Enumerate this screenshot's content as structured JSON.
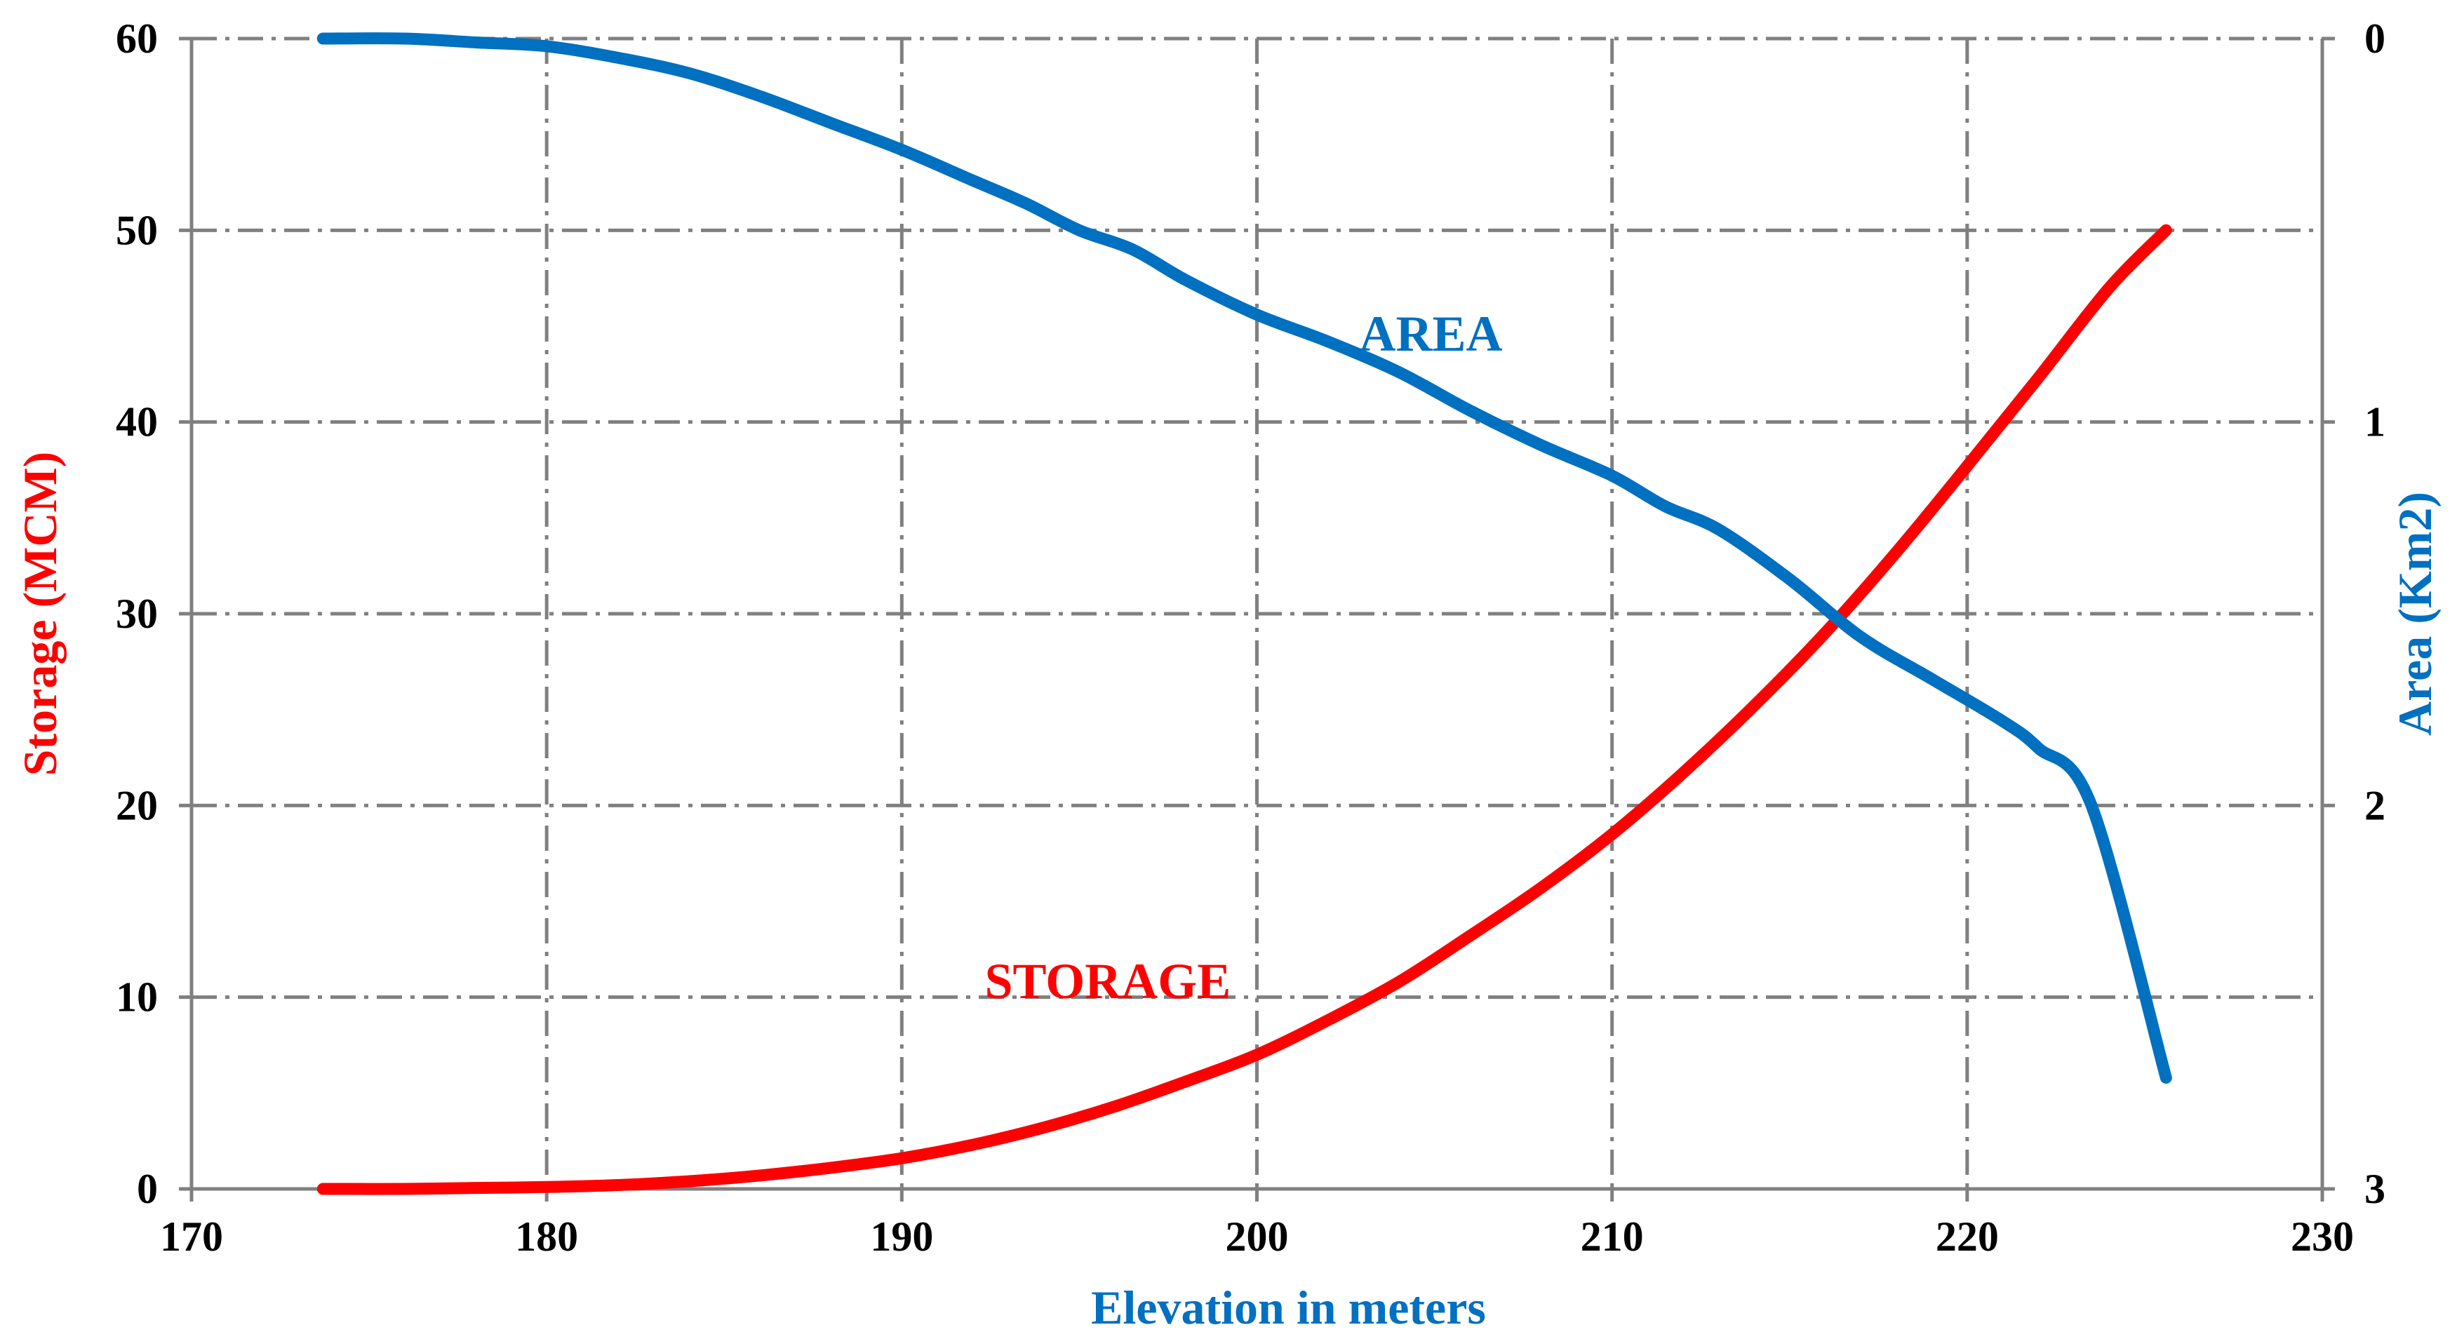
{
  "chart_data": {
    "type": "line",
    "xlabel": "Elevation in meters",
    "ylabel_left": "Storage (MCM)",
    "ylabel_right": "Area (Km2)",
    "xlim": [
      170,
      230
    ],
    "ylim_left": [
      0,
      60
    ],
    "ylim_right": [
      0,
      3
    ],
    "right_axis_inverted": true,
    "grid": true,
    "x_ticks": [
      170,
      180,
      190,
      200,
      210,
      220,
      230
    ],
    "y_left_ticks": [
      0,
      10,
      20,
      30,
      40,
      50,
      60
    ],
    "y_right_ticks": [
      0,
      1,
      2,
      3
    ],
    "colors": {
      "storage": "#ff0000",
      "area": "#0070c0",
      "grid": "#808080",
      "axis": "#808080"
    },
    "series": [
      {
        "name": "STORAGE",
        "axis": "left",
        "x": [
          173.7,
          176,
          178,
          180,
          182,
          184,
          186,
          188,
          190,
          192,
          194,
          196,
          198,
          200,
          202,
          204,
          206,
          208,
          210,
          212,
          214,
          216,
          218,
          220,
          222,
          224,
          225.6
        ],
        "values": [
          0,
          0,
          0.05,
          0.1,
          0.2,
          0.4,
          0.7,
          1.1,
          1.6,
          2.3,
          3.2,
          4.3,
          5.6,
          7.0,
          8.8,
          10.8,
          13.2,
          15.7,
          18.5,
          21.7,
          25.2,
          29.0,
          33.2,
          37.7,
          42.3,
          47.0,
          50.0
        ]
      },
      {
        "name": "AREA",
        "axis": "right",
        "x": [
          173.7,
          176,
          178,
          180,
          182,
          184,
          186,
          188,
          190,
          192,
          193.5,
          195,
          196.5,
          198,
          200,
          202,
          204,
          206,
          208,
          210,
          211.5,
          213,
          215,
          217,
          219,
          221,
          222,
          223.5,
          225.6
        ],
        "values": [
          0,
          0,
          0.01,
          0.02,
          0.05,
          0.09,
          0.15,
          0.22,
          0.29,
          0.37,
          0.43,
          0.5,
          0.55,
          0.63,
          0.72,
          0.79,
          0.87,
          0.97,
          1.06,
          1.14,
          1.22,
          1.28,
          1.41,
          1.56,
          1.67,
          1.78,
          1.85,
          2.0,
          2.71
        ]
      }
    ],
    "annotations": [
      {
        "text": "AREA",
        "series": "AREA"
      },
      {
        "text": "STORAGE",
        "series": "STORAGE"
      }
    ]
  }
}
